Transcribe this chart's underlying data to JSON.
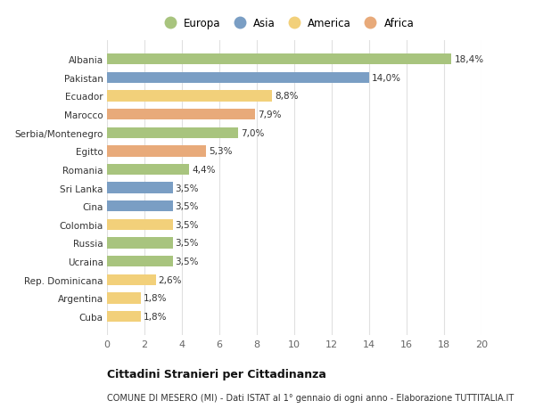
{
  "countries": [
    "Albania",
    "Pakistan",
    "Ecuador",
    "Marocco",
    "Serbia/Montenegro",
    "Egitto",
    "Romania",
    "Sri Lanka",
    "Cina",
    "Colombia",
    "Russia",
    "Ucraina",
    "Rep. Dominicana",
    "Argentina",
    "Cuba"
  ],
  "values": [
    18.4,
    14.0,
    8.8,
    7.9,
    7.0,
    5.3,
    4.4,
    3.5,
    3.5,
    3.5,
    3.5,
    3.5,
    2.6,
    1.8,
    1.8
  ],
  "labels": [
    "18,4%",
    "14,0%",
    "8,8%",
    "7,9%",
    "7,0%",
    "5,3%",
    "4,4%",
    "3,5%",
    "3,5%",
    "3,5%",
    "3,5%",
    "3,5%",
    "2,6%",
    "1,8%",
    "1,8%"
  ],
  "continents": [
    "Europa",
    "Asia",
    "America",
    "Africa",
    "Europa",
    "Africa",
    "Europa",
    "Asia",
    "Asia",
    "America",
    "Europa",
    "Europa",
    "America",
    "America",
    "America"
  ],
  "colors": {
    "Europa": "#a8c47e",
    "Asia": "#7a9ec4",
    "America": "#f2d07a",
    "Africa": "#e8aa7a"
  },
  "legend_order": [
    "Europa",
    "Asia",
    "America",
    "Africa"
  ],
  "title1": "Cittadini Stranieri per Cittadinanza",
  "title2": "COMUNE DI MESERO (MI) - Dati ISTAT al 1° gennaio di ogni anno - Elaborazione TUTTITALIA.IT",
  "xlim": [
    0,
    20
  ],
  "xticks": [
    0,
    2,
    4,
    6,
    8,
    10,
    12,
    14,
    16,
    18,
    20
  ],
  "fig_bg": "#ffffff",
  "plot_bg": "#ffffff",
  "bar_height": 0.6,
  "grid_color": "#e0e0e0"
}
